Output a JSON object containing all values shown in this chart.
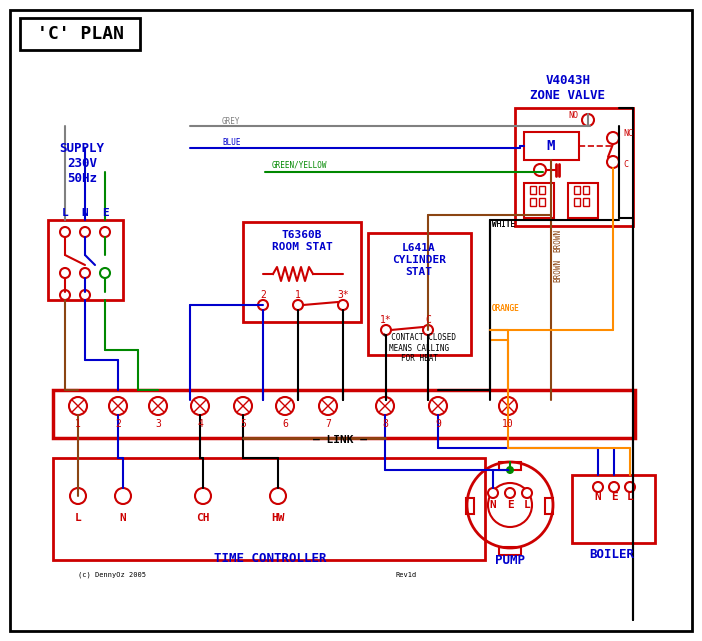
{
  "bg_color": "#ffffff",
  "border_color": "#000000",
  "red": "#cc0000",
  "blue": "#0000cc",
  "green": "#008800",
  "brown": "#8B4513",
  "grey": "#808080",
  "orange": "#FF8C00",
  "black": "#000000",
  "title": "'C' PLAN",
  "supply_text": "SUPPLY\n230V\n50Hz",
  "zone_valve_title": "V4043H\nZONE VALVE",
  "room_stat_title": "T6360B\nROOM STAT",
  "cylinder_stat_title": "L641A\nCYLINDER\nSTAT",
  "time_controller_label": "TIME CONTROLLER",
  "pump_label": "PUMP",
  "boiler_label": "BOILER",
  "link_label": "LINK",
  "copyright": "(c) DennyOz 2005",
  "rev": "Rev1d"
}
